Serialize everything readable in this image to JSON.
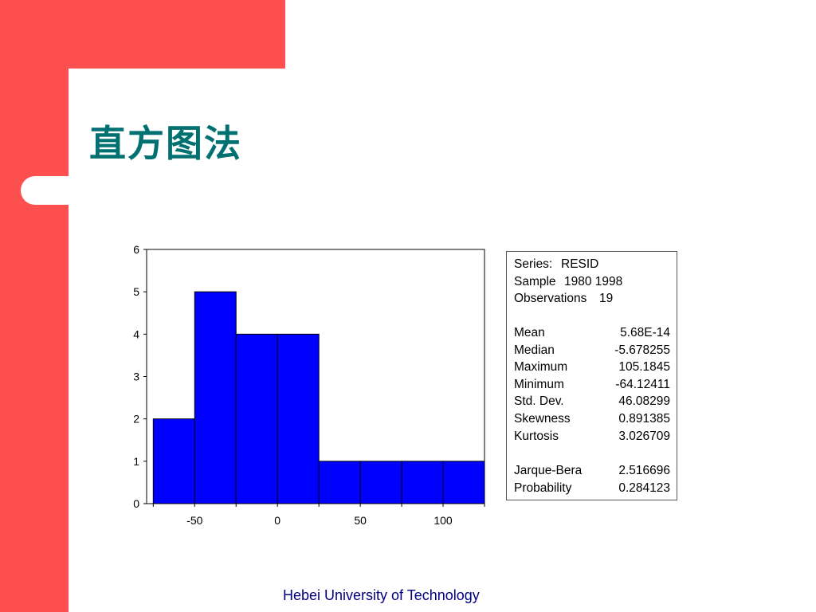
{
  "slide": {
    "title": "直方图法",
    "footer": "Hebei University of Technology",
    "colors": {
      "accent": "#ff5050",
      "title": "#007070",
      "footer": "#000080",
      "bars": "#0000ff"
    }
  },
  "chart_data": {
    "type": "bar",
    "title": "",
    "xlabel": "",
    "ylabel": "",
    "bins": [
      {
        "from": -75,
        "to": -50,
        "count": 2
      },
      {
        "from": -50,
        "to": -25,
        "count": 5
      },
      {
        "from": -25,
        "to": 0,
        "count": 4
      },
      {
        "from": 0,
        "to": 25,
        "count": 4
      },
      {
        "from": 25,
        "to": 50,
        "count": 1
      },
      {
        "from": 50,
        "to": 75,
        "count": 1
      },
      {
        "from": 75,
        "to": 100,
        "count": 1
      },
      {
        "from": 100,
        "to": 125,
        "count": 1
      }
    ],
    "xlim": [
      -79,
      125
    ],
    "ylim": [
      0,
      6
    ],
    "x_ticks": [
      "-50",
      "0",
      "50",
      "100"
    ],
    "y_ticks": [
      "0",
      "1",
      "2",
      "3",
      "4",
      "5",
      "6"
    ],
    "grid": false
  },
  "stats": {
    "series_label": "Series:",
    "series_value": "RESID",
    "sample_label": "Sample",
    "sample_value": "1980 1998",
    "observations_label": "Observations",
    "observations_value": "19",
    "rows": [
      {
        "label": "Mean",
        "value": "5.68E-14"
      },
      {
        "label": "Median",
        "value": "-5.678255"
      },
      {
        "label": "Maximum",
        "value": "105.1845"
      },
      {
        "label": "Minimum",
        "value": "-64.12411"
      },
      {
        "label": "Std. Dev.",
        "value": "46.08299"
      },
      {
        "label": "Skewness",
        "value": "0.891385"
      },
      {
        "label": "Kurtosis",
        "value": "3.026709"
      }
    ],
    "rows2": [
      {
        "label": "Jarque-Bera",
        "value": "2.516696"
      },
      {
        "label": "Probability",
        "value": "0.284123"
      }
    ]
  }
}
